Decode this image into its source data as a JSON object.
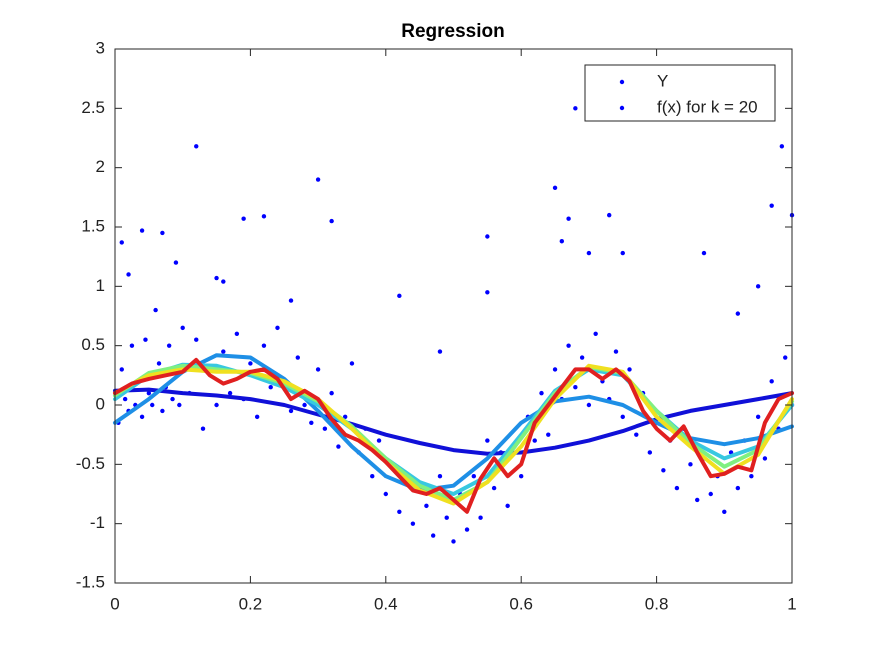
{
  "chart_data": {
    "type": "scatter-line",
    "title": "Regression",
    "xlim": [
      0,
      1
    ],
    "ylim": [
      -1.5,
      3
    ],
    "xticks": [
      0,
      0.2,
      0.4,
      0.6,
      0.8,
      1
    ],
    "yticks": [
      -1.5,
      -1,
      -0.5,
      0,
      0.5,
      1,
      1.5,
      2,
      2.5,
      3
    ],
    "legend_position": "northeast",
    "legend_marker_color": "#0000ff",
    "series": [
      {
        "name": "Y",
        "kind": "points",
        "color": "#0000ff",
        "x": [
          0.005,
          0.01,
          0.015,
          0.02,
          0.025,
          0.03,
          0.035,
          0.04,
          0.045,
          0.05,
          0.055,
          0.06,
          0.065,
          0.07,
          0.075,
          0.08,
          0.085,
          0.09,
          0.095,
          0.1,
          0.11,
          0.12,
          0.13,
          0.14,
          0.15,
          0.16,
          0.17,
          0.18,
          0.19,
          0.2,
          0.21,
          0.22,
          0.23,
          0.24,
          0.25,
          0.26,
          0.27,
          0.28,
          0.29,
          0.3,
          0.31,
          0.32,
          0.33,
          0.34,
          0.35,
          0.36,
          0.37,
          0.38,
          0.39,
          0.4,
          0.41,
          0.42,
          0.43,
          0.44,
          0.45,
          0.46,
          0.47,
          0.48,
          0.49,
          0.5,
          0.51,
          0.52,
          0.53,
          0.54,
          0.55,
          0.56,
          0.57,
          0.58,
          0.59,
          0.6,
          0.61,
          0.62,
          0.63,
          0.64,
          0.65,
          0.66,
          0.67,
          0.68,
          0.69,
          0.7,
          0.71,
          0.72,
          0.73,
          0.74,
          0.75,
          0.76,
          0.77,
          0.78,
          0.79,
          0.8,
          0.81,
          0.82,
          0.83,
          0.84,
          0.85,
          0.86,
          0.87,
          0.88,
          0.89,
          0.9,
          0.91,
          0.92,
          0.93,
          0.94,
          0.95,
          0.96,
          0.97,
          0.98,
          0.99,
          1.0,
          0.12,
          0.3,
          0.15,
          0.19,
          0.22,
          0.26,
          0.65,
          0.67,
          0.66,
          0.7,
          0.75,
          0.73,
          0.97,
          0.985,
          1.0,
          0.01,
          0.02,
          0.04,
          0.07,
          0.09,
          0.16,
          0.32,
          0.42,
          0.55,
          0.55,
          0.48,
          0.87,
          0.95,
          0.92,
          0.68
        ],
        "values": [
          -0.15,
          0.3,
          0.05,
          -0.05,
          0.5,
          0.0,
          0.2,
          -0.1,
          0.55,
          0.1,
          0.0,
          0.8,
          0.35,
          -0.05,
          0.15,
          0.5,
          0.05,
          0.3,
          0.0,
          0.65,
          0.1,
          0.55,
          -0.2,
          0.3,
          0.0,
          0.45,
          0.1,
          0.6,
          0.05,
          0.35,
          -0.1,
          0.5,
          0.15,
          0.65,
          0.2,
          -0.05,
          0.4,
          0.0,
          -0.15,
          0.3,
          -0.2,
          0.1,
          -0.35,
          -0.1,
          0.35,
          -0.4,
          -0.2,
          -0.6,
          -0.3,
          -0.75,
          -0.5,
          -0.9,
          -0.6,
          -1.0,
          -0.7,
          -0.85,
          -1.1,
          -0.6,
          -0.95,
          -1.15,
          -0.75,
          -1.05,
          -0.6,
          -0.95,
          -0.3,
          -0.7,
          -0.4,
          -0.85,
          -0.35,
          -0.6,
          -0.1,
          -0.3,
          0.1,
          -0.25,
          0.3,
          0.05,
          0.5,
          0.15,
          0.4,
          0.0,
          0.6,
          0.2,
          0.05,
          0.45,
          -0.1,
          0.3,
          -0.25,
          0.1,
          -0.4,
          -0.15,
          -0.55,
          -0.3,
          -0.7,
          -0.2,
          -0.5,
          -0.8,
          -0.45,
          -0.75,
          -0.6,
          -0.9,
          -0.4,
          -0.7,
          -0.3,
          -0.6,
          -0.1,
          -0.45,
          0.2,
          -0.2,
          0.4,
          0.0,
          2.18,
          1.9,
          1.07,
          1.57,
          1.59,
          0.88,
          1.83,
          1.57,
          1.38,
          1.28,
          1.28,
          1.6,
          1.68,
          2.18,
          1.6,
          1.37,
          1.1,
          1.47,
          1.45,
          1.2,
          1.04,
          1.55,
          0.92,
          1.42,
          0.95,
          0.45,
          1.28,
          1.0,
          0.77,
          2.5
        ]
      },
      {
        "kind": "curve",
        "color": "#1010d8",
        "x": [
          0,
          0.05,
          0.1,
          0.15,
          0.2,
          0.25,
          0.3,
          0.35,
          0.4,
          0.45,
          0.5,
          0.55,
          0.6,
          0.65,
          0.7,
          0.75,
          0.8,
          0.85,
          0.9,
          0.95,
          1
        ],
        "values": [
          0.12,
          0.13,
          0.1,
          0.08,
          0.05,
          0.0,
          -0.08,
          -0.16,
          -0.25,
          -0.32,
          -0.38,
          -0.41,
          -0.4,
          -0.36,
          -0.3,
          -0.22,
          -0.12,
          -0.05,
          0.0,
          0.05,
          0.1
        ]
      },
      {
        "kind": "curve",
        "color": "#1e8fe6",
        "x": [
          0,
          0.05,
          0.1,
          0.15,
          0.2,
          0.25,
          0.3,
          0.35,
          0.4,
          0.45,
          0.5,
          0.55,
          0.6,
          0.65,
          0.7,
          0.75,
          0.8,
          0.85,
          0.9,
          0.95,
          1
        ],
        "values": [
          -0.15,
          0.05,
          0.28,
          0.42,
          0.4,
          0.22,
          -0.05,
          -0.35,
          -0.6,
          -0.72,
          -0.68,
          -0.45,
          -0.15,
          0.03,
          0.07,
          0.0,
          -0.15,
          -0.28,
          -0.33,
          -0.28,
          -0.18
        ]
      },
      {
        "kind": "curve",
        "color": "#38c8e0",
        "x": [
          0,
          0.05,
          0.1,
          0.15,
          0.2,
          0.25,
          0.3,
          0.35,
          0.4,
          0.45,
          0.5,
          0.55,
          0.6,
          0.65,
          0.7,
          0.75,
          0.8,
          0.85,
          0.9,
          0.95,
          1
        ],
        "values": [
          0.05,
          0.25,
          0.34,
          0.33,
          0.25,
          0.15,
          0.0,
          -0.2,
          -0.45,
          -0.65,
          -0.75,
          -0.6,
          -0.25,
          0.12,
          0.3,
          0.25,
          -0.05,
          -0.3,
          -0.45,
          -0.35,
          0.0
        ]
      },
      {
        "kind": "curve",
        "color": "#80f080",
        "x": [
          0,
          0.05,
          0.1,
          0.15,
          0.2,
          0.25,
          0.3,
          0.35,
          0.4,
          0.45,
          0.5,
          0.55,
          0.6,
          0.65,
          0.7,
          0.75,
          0.8,
          0.85,
          0.9,
          0.95,
          1
        ],
        "values": [
          0.08,
          0.27,
          0.33,
          0.3,
          0.27,
          0.18,
          0.03,
          -0.18,
          -0.45,
          -0.68,
          -0.8,
          -0.65,
          -0.28,
          0.1,
          0.32,
          0.27,
          -0.05,
          -0.32,
          -0.52,
          -0.38,
          0.03
        ]
      },
      {
        "kind": "curve",
        "color": "#f0e020",
        "x": [
          0,
          0.05,
          0.1,
          0.15,
          0.2,
          0.25,
          0.3,
          0.35,
          0.4,
          0.45,
          0.5,
          0.55,
          0.6,
          0.65,
          0.7,
          0.75,
          0.8,
          0.85,
          0.9,
          0.95,
          1
        ],
        "values": [
          0.1,
          0.25,
          0.3,
          0.28,
          0.28,
          0.2,
          0.05,
          -0.2,
          -0.48,
          -0.72,
          -0.83,
          -0.65,
          -0.35,
          0.05,
          0.33,
          0.28,
          -0.1,
          -0.35,
          -0.58,
          -0.42,
          0.05
        ]
      },
      {
        "kind": "curve",
        "color": "#e02020",
        "x": [
          0,
          0.025,
          0.05,
          0.075,
          0.1,
          0.12,
          0.14,
          0.16,
          0.18,
          0.2,
          0.22,
          0.24,
          0.26,
          0.28,
          0.3,
          0.32,
          0.34,
          0.36,
          0.38,
          0.4,
          0.42,
          0.44,
          0.46,
          0.48,
          0.5,
          0.52,
          0.54,
          0.56,
          0.58,
          0.6,
          0.62,
          0.64,
          0.66,
          0.68,
          0.7,
          0.72,
          0.74,
          0.76,
          0.78,
          0.8,
          0.82,
          0.84,
          0.86,
          0.88,
          0.9,
          0.92,
          0.94,
          0.96,
          0.98,
          1
        ],
        "values": [
          0.1,
          0.18,
          0.22,
          0.25,
          0.28,
          0.38,
          0.25,
          0.18,
          0.22,
          0.28,
          0.3,
          0.22,
          0.05,
          0.12,
          0.05,
          -0.12,
          -0.25,
          -0.3,
          -0.38,
          -0.48,
          -0.6,
          -0.72,
          -0.75,
          -0.7,
          -0.8,
          -0.9,
          -0.62,
          -0.45,
          -0.6,
          -0.5,
          -0.15,
          0.0,
          0.15,
          0.3,
          0.3,
          0.22,
          0.3,
          0.2,
          -0.05,
          -0.2,
          -0.3,
          -0.18,
          -0.4,
          -0.6,
          -0.58,
          -0.52,
          -0.55,
          -0.15,
          0.05,
          0.1
        ]
      },
      {
        "name": "f(x) for k = 20"
      }
    ]
  }
}
